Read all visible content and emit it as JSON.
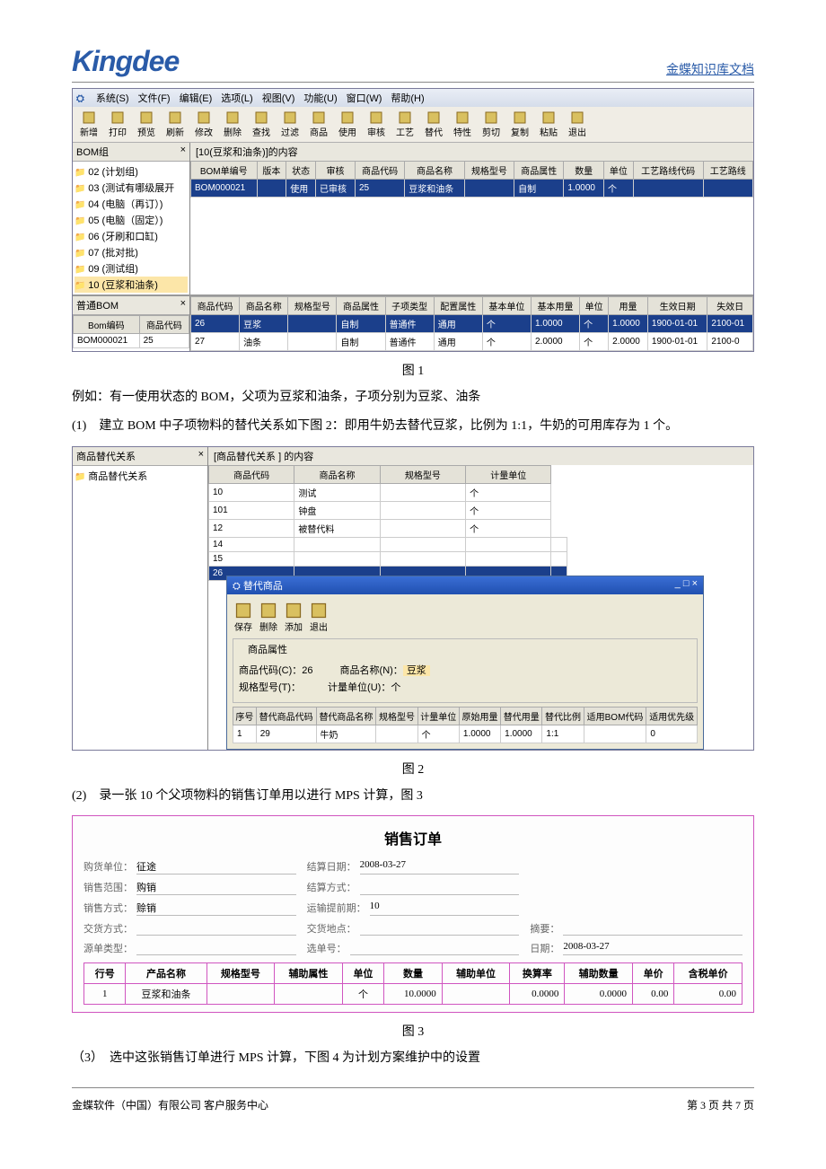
{
  "header": {
    "logo": "Kingdee",
    "title": "金蝶知识库文档"
  },
  "footer": {
    "left": "金蝶软件（中国）有限公司  客户服务中心",
    "right": "第 3 页  共 7 页"
  },
  "fig1": {
    "label": "图 1",
    "menubar": [
      "系统(S)",
      "文件(F)",
      "编辑(E)",
      "选项(L)",
      "视图(V)",
      "功能(U)",
      "窗口(W)",
      "帮助(H)"
    ],
    "toolbar": [
      {
        "icon": "new",
        "label": "新增"
      },
      {
        "icon": "print",
        "label": "打印"
      },
      {
        "icon": "preview",
        "label": "预览"
      },
      {
        "icon": "refresh",
        "label": "刷新"
      },
      {
        "icon": "edit",
        "label": "修改"
      },
      {
        "icon": "del",
        "label": "删除"
      },
      {
        "icon": "find",
        "label": "查找"
      },
      {
        "icon": "filter",
        "label": "过滤"
      },
      {
        "icon": "goods",
        "label": "商品"
      },
      {
        "icon": "use",
        "label": "使用"
      },
      {
        "icon": "audit",
        "label": "审核"
      },
      {
        "icon": "craft",
        "label": "工艺"
      },
      {
        "icon": "alt",
        "label": "替代"
      },
      {
        "icon": "prop",
        "label": "特性"
      },
      {
        "icon": "cut",
        "label": "剪切"
      },
      {
        "icon": "copy",
        "label": "复制"
      },
      {
        "icon": "paste",
        "label": "粘贴"
      },
      {
        "icon": "exit",
        "label": "退出"
      }
    ],
    "side_title": "BOM组",
    "tree": [
      "02 (计划组)",
      "03 (测试有哪级展开",
      "04 (电脑（再订）)",
      "05 (电脑（固定）)",
      "06 (牙刷和口缸)",
      "07 (批对批)",
      "09 (测试组)",
      "10 (豆浆和油条)"
    ],
    "tree_selected": 7,
    "grid_title": "[10(豆浆和油条)]的内容",
    "cols": [
      "BOM单编号",
      "版本",
      "状态",
      "审核",
      "商品代码",
      "商品名称",
      "规格型号",
      "商品属性",
      "数量",
      "单位",
      "工艺路线代码",
      "工艺路线"
    ],
    "row": [
      "BOM000021",
      "",
      "使用",
      "已审核",
      "25",
      "豆浆和油条",
      "",
      "自制",
      "1.0000",
      "个",
      "",
      ""
    ],
    "lower_left_title": "普通BOM",
    "lower_left_cols": [
      "Bom编码",
      "商品代码"
    ],
    "lower_left_row": [
      "BOM000021",
      "25"
    ],
    "lower_right_cols": [
      "商品代码",
      "商品名称",
      "规格型号",
      "商品属性",
      "子项类型",
      "配置属性",
      "基本单位",
      "基本用量",
      "单位",
      "用量",
      "生效日期",
      "失效日"
    ],
    "lower_right_rows": [
      [
        "26",
        "豆浆",
        "",
        "自制",
        "普通件",
        "通用",
        "个",
        "1.0000",
        "个",
        "1.0000",
        "1900-01-01",
        "2100-01"
      ],
      [
        "27",
        "油条",
        "",
        "自制",
        "普通件",
        "通用",
        "个",
        "2.0000",
        "个",
        "2.0000",
        "1900-01-01",
        "2100-0"
      ]
    ],
    "lower_right_sel": 0
  },
  "p1": "例如：有一使用状态的 BOM，父项为豆浆和油条，子项分别为豆浆、油条",
  "p2": "(1)　建立 BOM 中子项物料的替代关系如下图 2：即用牛奶去替代豆浆，比例为 1:1，牛奶的可用库存为 1 个。",
  "fig2": {
    "label": "图 2",
    "side_title": "商品替代关系",
    "tree_item": "商品替代关系",
    "grid_title": "[商品替代关系 ] 的内容",
    "cols": [
      "商品代码",
      "商品名称",
      "规格型号",
      "计量单位"
    ],
    "rows": [
      [
        "10",
        "测试",
        "",
        "个"
      ],
      [
        "101",
        "钟盘",
        "",
        "个"
      ],
      [
        "12",
        "被替代料",
        "",
        "个"
      ],
      [
        "14",
        "",
        "",
        "",
        ""
      ],
      [
        "15",
        "",
        "",
        "",
        ""
      ],
      [
        "26",
        "",
        "",
        "",
        ""
      ]
    ],
    "sel": 5,
    "dialog": {
      "title": "替代商品",
      "toolbar": [
        "保存",
        "删除",
        "添加",
        "退出"
      ],
      "group_title": "商品属性",
      "code_lbl": "商品代码(C)：",
      "code_val": "26",
      "name_lbl": "商品名称(N)：",
      "name_val": "豆浆",
      "spec_lbl": "规格型号(T)：",
      "spec_val": "",
      "unit_lbl": "计量单位(U)：",
      "unit_val": "个",
      "cols": [
        "序号",
        "替代商品代码",
        "替代商品名称",
        "规格型号",
        "计量单位",
        "原始用量",
        "替代用量",
        "替代比例",
        "适用BOM代码",
        "适用优先级"
      ],
      "row": [
        "1",
        "29",
        "牛奶",
        "",
        "个",
        "1.0000",
        "1.0000",
        "1:1",
        "",
        "0"
      ]
    }
  },
  "p3": "(2)　录一张 10 个父项物料的销售订单用以进行 MPS 计算，图 3",
  "fig3": {
    "label": "图 3",
    "title": "销售订单",
    "fields": [
      [
        "购货单位：",
        "征途"
      ],
      [
        "结算日期：",
        "2008-03-27"
      ],
      [
        "",
        ""
      ],
      [
        "销售范围：",
        "购销"
      ],
      [
        "结算方式：",
        ""
      ],
      [
        "",
        ""
      ],
      [
        "销售方式：",
        "赊销"
      ],
      [
        "运输提前期：",
        "10"
      ],
      [
        "",
        ""
      ],
      [
        "交货方式：",
        ""
      ],
      [
        "交货地点：",
        ""
      ],
      [
        "摘要：",
        ""
      ],
      [
        "源单类型：",
        ""
      ],
      [
        "选单号：",
        ""
      ],
      [
        "日期：",
        "2008-03-27"
      ]
    ],
    "cols": [
      "行号",
      "产品名称",
      "规格型号",
      "辅助属性",
      "单位",
      "数量",
      "辅助单位",
      "换算率",
      "辅助数量",
      "单价",
      "含税单价"
    ],
    "row": [
      "1",
      "豆浆和油条",
      "",
      "",
      "个",
      "10.0000",
      "",
      "0.0000",
      "0.0000",
      "0.00",
      "0.00"
    ]
  },
  "p4": "（3）　选中这张销售订单进行 MPS 计算，下图 4 为计划方案维护中的设置",
  "colors": {
    "brand": "#2a5ba8",
    "selrow": "#1b3f8b",
    "dlgtitle": "#2050b0",
    "order_border": "#d055c0"
  }
}
